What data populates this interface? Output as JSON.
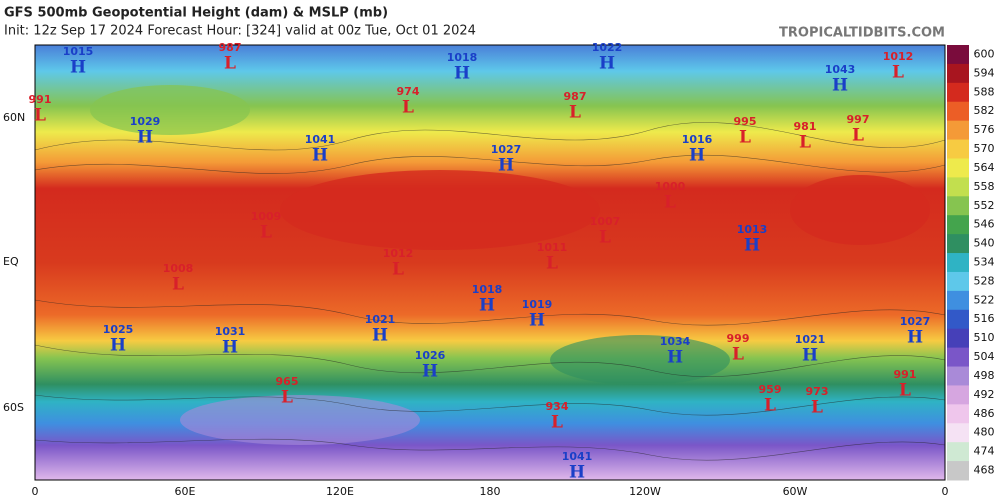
{
  "map": {
    "title": "GFS 500mb Geopotential Height (dam) & MSLP (mb)",
    "subtitle": "Init: 12z Sep 17 2024   Forecast Hour: [324]   valid at 00z Tue, Oct 01 2024",
    "site": "TROPICALTIDBITS.COM",
    "lon_labels": [
      "0",
      "60E",
      "120E",
      "180",
      "120W",
      "60W",
      "0"
    ],
    "lat_labels": [
      "60N",
      "EQ",
      "60S"
    ],
    "colorbar": {
      "levels": [
        600,
        594,
        588,
        582,
        576,
        570,
        564,
        558,
        552,
        546,
        540,
        534,
        528,
        522,
        516,
        510,
        504,
        498,
        492,
        486,
        480,
        474,
        468
      ],
      "colors": [
        "#7a0c3c",
        "#a8151f",
        "#d42a1e",
        "#ec5e26",
        "#f49a37",
        "#f7cb42",
        "#eeea4c",
        "#c2df4e",
        "#86c450",
        "#44a44d",
        "#2f8f61",
        "#2fb3c4",
        "#5ec8ea",
        "#3f8fe0",
        "#3259c8",
        "#4640b8",
        "#7a56c8",
        "#a98ad8",
        "#d6a6e0",
        "#efc6ec",
        "#f5e2f4",
        "#cfe9d3",
        "#c8c8c8"
      ]
    },
    "centers": [
      {
        "type": "H",
        "pressure": 1015
      },
      {
        "type": "L",
        "pressure": 987
      },
      {
        "type": "L",
        "pressure": 991
      },
      {
        "type": "H",
        "pressure": 1029
      },
      {
        "type": "L",
        "pressure": 974
      },
      {
        "type": "H",
        "pressure": 1041
      },
      {
        "type": "H",
        "pressure": 1018
      },
      {
        "type": "H",
        "pressure": 1027
      },
      {
        "type": "L",
        "pressure": 987
      },
      {
        "type": "H",
        "pressure": 1022
      },
      {
        "type": "H",
        "pressure": 1016
      },
      {
        "type": "L",
        "pressure": 995
      },
      {
        "type": "L",
        "pressure": 981
      },
      {
        "type": "H",
        "pressure": 1043
      },
      {
        "type": "L",
        "pressure": 1012
      },
      {
        "type": "L",
        "pressure": 997
      },
      {
        "type": "L",
        "pressure": 1009
      },
      {
        "type": "L",
        "pressure": 1007
      },
      {
        "type": "L",
        "pressure": 1011
      },
      {
        "type": "L",
        "pressure": 1012
      },
      {
        "type": "H",
        "pressure": 1013
      },
      {
        "type": "L",
        "pressure": 1008
      },
      {
        "type": "H",
        "pressure": 1025
      },
      {
        "type": "H",
        "pressure": 1031
      },
      {
        "type": "H",
        "pressure": 1021
      },
      {
        "type": "H",
        "pressure": 1018
      },
      {
        "type": "H",
        "pressure": 1019
      },
      {
        "type": "H",
        "pressure": 1026
      },
      {
        "type": "H",
        "pressure": 1034
      },
      {
        "type": "L",
        "pressure": 999
      },
      {
        "type": "H",
        "pressure": 1021
      },
      {
        "type": "H",
        "pressure": 1027
      },
      {
        "type": "L",
        "pressure": 965
      },
      {
        "type": "L",
        "pressure": 934
      },
      {
        "type": "L",
        "pressure": 959
      },
      {
        "type": "L",
        "pressure": 973
      },
      {
        "type": "L",
        "pressure": 991
      },
      {
        "type": "H",
        "pressure": 1041
      },
      {
        "type": "L",
        "pressure": 1000
      }
    ]
  }
}
